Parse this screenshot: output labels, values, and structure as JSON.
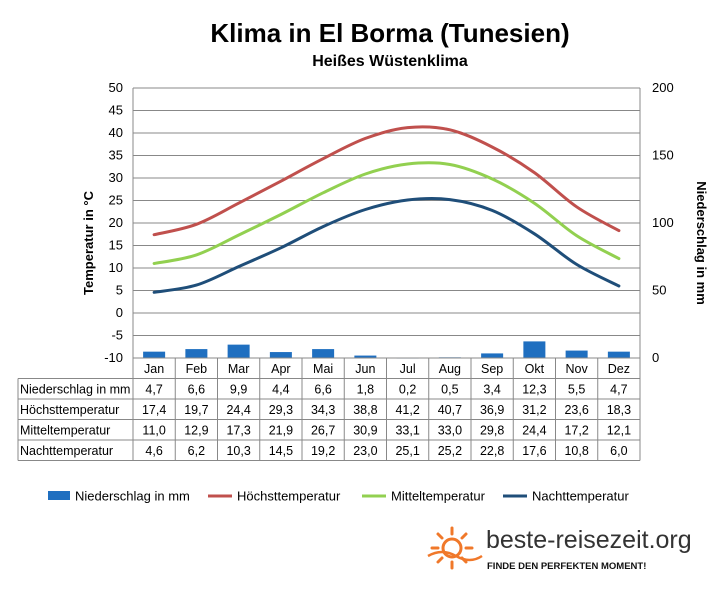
{
  "chart_data": {
    "type": "bar+line",
    "title": "Klima in El Borma (Tunesien)",
    "subtitle": "Heißes Wüstenklima",
    "ylabel_left": "Temperatur in °C",
    "ylabel_right": "Niederschlag in mm",
    "ylim_left": [
      -10,
      50
    ],
    "yticks_left": [
      "50",
      "45",
      "40",
      "35",
      "30",
      "25",
      "20",
      "15",
      "10",
      "5",
      "0",
      "-5",
      "-10"
    ],
    "ylim_right": [
      0,
      200
    ],
    "yticks_right": [
      "200",
      "150",
      "100",
      "50",
      "0"
    ],
    "grid": true,
    "legend_position": "bottom",
    "categories": [
      "Jan",
      "Feb",
      "Mar",
      "Apr",
      "Mai",
      "Jun",
      "Jul",
      "Aug",
      "Sep",
      "Okt",
      "Nov",
      "Dez"
    ],
    "series": [
      {
        "name": "Niederschlag in mm",
        "kind": "bar",
        "axis": "right",
        "color": "#1f6fc0",
        "values": [
          4.7,
          6.6,
          9.9,
          4.4,
          6.6,
          1.8,
          0.2,
          0.5,
          3.4,
          12.3,
          5.5,
          4.7
        ],
        "labels": [
          "4,7",
          "6,6",
          "9,9",
          "4,4",
          "6,6",
          "1,8",
          "0,2",
          "0,5",
          "3,4",
          "12,3",
          "5,5",
          "4,7"
        ]
      },
      {
        "name": "Höchsttemperatur",
        "kind": "line",
        "axis": "left",
        "color": "#c0504d",
        "values": [
          17.4,
          19.7,
          24.4,
          29.3,
          34.3,
          38.8,
          41.2,
          40.7,
          36.9,
          31.2,
          23.6,
          18.3
        ],
        "labels": [
          "17,4",
          "19,7",
          "24,4",
          "29,3",
          "34,3",
          "38,8",
          "41,2",
          "40,7",
          "36,9",
          "31,2",
          "23,6",
          "18,3"
        ]
      },
      {
        "name": "Mitteltemperatur",
        "kind": "line",
        "axis": "left",
        "color": "#92d050",
        "values": [
          11.0,
          12.9,
          17.3,
          21.9,
          26.7,
          30.9,
          33.1,
          33.0,
          29.8,
          24.4,
          17.2,
          12.1
        ],
        "labels": [
          "11,0",
          "12,9",
          "17,3",
          "21,9",
          "26,7",
          "30,9",
          "33,1",
          "33,0",
          "29,8",
          "24,4",
          "17,2",
          "12,1"
        ]
      },
      {
        "name": "Nachttemperatur",
        "kind": "line",
        "axis": "left",
        "color": "#1f4e79",
        "values": [
          4.6,
          6.2,
          10.3,
          14.5,
          19.2,
          23.0,
          25.1,
          25.2,
          22.8,
          17.6,
          10.8,
          6.0
        ],
        "labels": [
          "4,6",
          "6,2",
          "10,3",
          "14,5",
          "19,2",
          "23,0",
          "25,1",
          "25,2",
          "22,8",
          "17,6",
          "10,8",
          "6,0"
        ]
      }
    ]
  },
  "brand": {
    "name": "beste-reisezeit.org",
    "tagline": "FINDE DEN PERFEKTEN MOMENT!"
  }
}
